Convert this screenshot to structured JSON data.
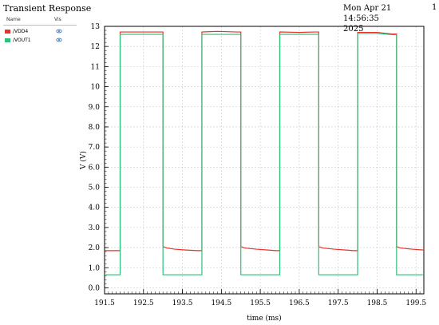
{
  "header": {
    "title": "Transient Response",
    "timestamp_line1": "Mon Apr 21 14:56:35",
    "timestamp_line2": "2025",
    "page_number": "1"
  },
  "legend": {
    "name_header": "Name",
    "vis_header": "Vis",
    "items": [
      {
        "label": "/VDD4",
        "color": "#e8322c",
        "icon": "eye-icon"
      },
      {
        "label": "/VOUT1",
        "color": "#2fbf7a",
        "icon": "eye-icon"
      }
    ]
  },
  "chart_data": {
    "type": "line",
    "title": "Transient Response",
    "xlabel": "time (ms)",
    "ylabel": "V (V)",
    "xlim": [
      191.5,
      199.7
    ],
    "ylim": [
      -0.3,
      13
    ],
    "xticks": [
      191.5,
      192.5,
      193.5,
      194.5,
      195.5,
      196.5,
      197.5,
      198.5,
      199.5
    ],
    "yticks": [
      0.0,
      1.0,
      2.0,
      3.0,
      4.0,
      5.0,
      6.0,
      7.0,
      8.0,
      9.0,
      10,
      11,
      12,
      13
    ],
    "grid": true,
    "series": [
      {
        "name": "/VDD4",
        "color": "#e8322c",
        "x": [
          191.5,
          191.9,
          191.9,
          192.5,
          192.5,
          193.0,
          193.0,
          193.1,
          193.3,
          193.6,
          193.9,
          194.0,
          194.0,
          194.4,
          194.9,
          195.0,
          195.0,
          195.1,
          195.4,
          195.7,
          195.9,
          196.0,
          196.0,
          196.5,
          196.9,
          197.0,
          197.0,
          197.1,
          197.4,
          197.7,
          197.9,
          198.0,
          198.0,
          198.5,
          198.9,
          199.0,
          199.0,
          199.1,
          199.4,
          199.7
        ],
        "y": [
          1.85,
          1.85,
          12.72,
          12.72,
          12.72,
          12.72,
          2.05,
          1.98,
          1.92,
          1.88,
          1.85,
          1.85,
          12.72,
          12.75,
          12.72,
          12.72,
          2.05,
          1.98,
          1.92,
          1.88,
          1.85,
          1.85,
          12.72,
          12.7,
          12.72,
          12.72,
          2.05,
          1.98,
          1.92,
          1.88,
          1.85,
          1.85,
          12.7,
          12.7,
          12.62,
          12.62,
          2.05,
          1.98,
          1.92,
          1.88
        ]
      },
      {
        "name": "/VOUT1",
        "color": "#2fbf7a",
        "x": [
          191.5,
          191.9,
          191.9,
          192.5,
          193.0,
          193.0,
          194.0,
          194.0,
          194.5,
          195.0,
          195.0,
          196.0,
          196.0,
          196.5,
          197.0,
          197.0,
          198.0,
          198.0,
          198.5,
          198.9,
          199.0,
          199.0,
          199.7
        ],
        "y": [
          0.65,
          0.65,
          12.6,
          12.6,
          12.6,
          0.65,
          0.65,
          12.6,
          12.6,
          12.6,
          0.65,
          0.65,
          12.6,
          12.6,
          12.6,
          0.65,
          0.65,
          12.65,
          12.65,
          12.58,
          12.58,
          0.65,
          0.65
        ]
      }
    ]
  }
}
